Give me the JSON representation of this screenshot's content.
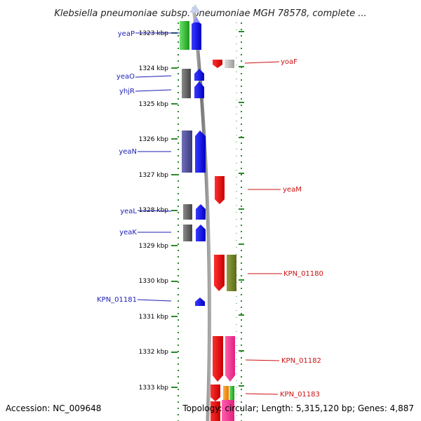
{
  "title": "Klebsiella pneumoniae subsp. pneumoniae MGH 78578, complete ...",
  "footer": {
    "accession": "Accession: NC_009648",
    "topology": "Topology: circular; Length: 5,315,120 bp; Genes: 4,887"
  },
  "axis": {
    "unit": "kbp",
    "ticks": [
      {
        "label": "1323 kbp"
      },
      {
        "label": "1324 kbp"
      },
      {
        "label": "1325 kbp"
      },
      {
        "label": "1326 kbp"
      },
      {
        "label": "1327 kbp"
      },
      {
        "label": "1328 kbp"
      },
      {
        "label": "1329 kbp"
      },
      {
        "label": "1330 kbp"
      },
      {
        "label": "1331 kbp"
      },
      {
        "label": "1332 kbp"
      },
      {
        "label": "1333 kbp"
      }
    ]
  },
  "colors": {
    "left_label": "#1c1cb4",
    "right_label": "#cc1010",
    "track_dots": "#2a8a2a",
    "backbone": "#888888"
  },
  "genes_left": [
    {
      "name": "yeaP"
    },
    {
      "name": "yeaO"
    },
    {
      "name": "yhjR"
    },
    {
      "name": "yeaN"
    },
    {
      "name": "yeaL"
    },
    {
      "name": "yeaK"
    },
    {
      "name": "KPN_01181"
    }
  ],
  "genes_right": [
    {
      "name": "yoaF"
    },
    {
      "name": "yeaM"
    },
    {
      "name": "KPN_01180"
    },
    {
      "name": "KPN_01182"
    },
    {
      "name": "KPN_01183"
    }
  ]
}
